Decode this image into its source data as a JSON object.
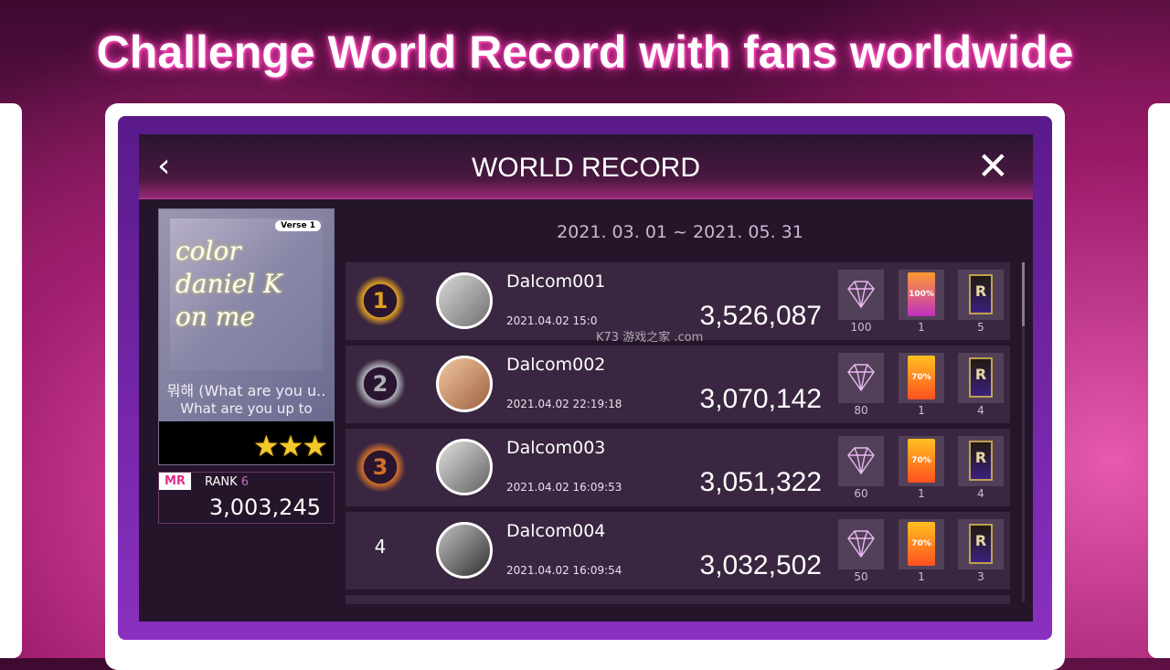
{
  "promo_title": "Challenge World Record with fans worldwide",
  "header": {
    "title": "WORLD RECORD",
    "back_icon": "chevron-left-icon",
    "close_icon": "close-icon"
  },
  "song": {
    "verse_badge": "Verse 1",
    "cover_art_text": "color daniel K on me",
    "title": "뭐해 (What are you u..",
    "subtitle": "What are you up to",
    "stars": 3
  },
  "my_record": {
    "badge": "MR",
    "rank_label": "RANK",
    "rank": "6",
    "score": "3,003,245"
  },
  "period": "2021. 03. 01 ~ 2021. 05. 31",
  "watermark": "K73 游戏之家 .com",
  "rows": [
    {
      "rank": "1",
      "name": "Dalcom001",
      "date": "2021.04.02 15:0",
      "score": "3,526,087",
      "rewards": {
        "gems": "100",
        "booster": "1",
        "booster_label": "100%",
        "card": "5"
      },
      "medal": "gold"
    },
    {
      "rank": "2",
      "name": "Dalcom002",
      "date": "2021.04.02 22:19:18",
      "score": "3,070,142",
      "rewards": {
        "gems": "80",
        "booster": "1",
        "booster_label": "70%",
        "card": "4"
      },
      "medal": "silver"
    },
    {
      "rank": "3",
      "name": "Dalcom003",
      "date": "2021.04.02 16:09:53",
      "score": "3,051,322",
      "rewards": {
        "gems": "60",
        "booster": "1",
        "booster_label": "70%",
        "card": "4"
      },
      "medal": "bronze"
    },
    {
      "rank": "4",
      "name": "Dalcom004",
      "date": "2021.04.02 16:09:54",
      "score": "3,032,502",
      "rewards": {
        "gems": "50",
        "booster": "1",
        "booster_label": "70%",
        "card": "3"
      },
      "medal": "none"
    }
  ],
  "card_letter": "R",
  "colors": {
    "gold": "#e0a020",
    "silver": "#b0b0b8",
    "bronze": "#d0702a",
    "accent": "#e0308a"
  }
}
